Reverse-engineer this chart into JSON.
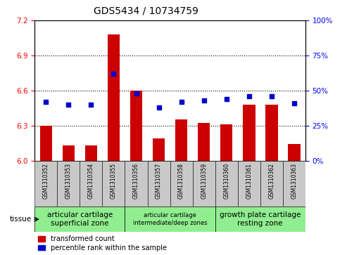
{
  "title": "GDS5434 / 10734759",
  "samples": [
    "GSM1310352",
    "GSM1310353",
    "GSM1310354",
    "GSM1310355",
    "GSM1310356",
    "GSM1310357",
    "GSM1310358",
    "GSM1310359",
    "GSM1310360",
    "GSM1310361",
    "GSM1310362",
    "GSM1310363"
  ],
  "transformed_count": [
    6.3,
    6.13,
    6.13,
    7.08,
    6.6,
    6.19,
    6.35,
    6.32,
    6.31,
    6.48,
    6.48,
    6.14
  ],
  "percentile_rank": [
    42,
    40,
    40,
    62,
    48,
    38,
    42,
    43,
    44,
    46,
    46,
    41
  ],
  "bar_color": "#cc0000",
  "dot_color": "#0000cc",
  "ylim_left": [
    6.0,
    7.2
  ],
  "ylim_right": [
    0,
    100
  ],
  "yticks_left": [
    6.0,
    6.3,
    6.6,
    6.9,
    7.2
  ],
  "yticks_right": [
    0,
    25,
    50,
    75,
    100
  ],
  "ytick_labels_right": [
    "0%",
    "25%",
    "50%",
    "75%",
    "100%"
  ],
  "grid_values": [
    6.3,
    6.6,
    6.9
  ],
  "tissue_groups": [
    {
      "label": "articular cartilage\nsuperficial zone",
      "start": 0,
      "end": 4,
      "fontsize": 7.5
    },
    {
      "label": "articular cartilage\nintermediate/deep zones",
      "start": 4,
      "end": 8,
      "fontsize": 6.0
    },
    {
      "label": "growth plate cartilage\nresting zone",
      "start": 8,
      "end": 12,
      "fontsize": 7.5
    }
  ],
  "tissue_color": "#90ee90",
  "tissue_label": "tissue",
  "sample_bg_color": "#c8c8c8",
  "bar_width": 0.55,
  "base_value": 6.0,
  "title_fontsize": 10,
  "legend_red_label": "transformed count",
  "legend_blue_label": "percentile rank within the sample"
}
